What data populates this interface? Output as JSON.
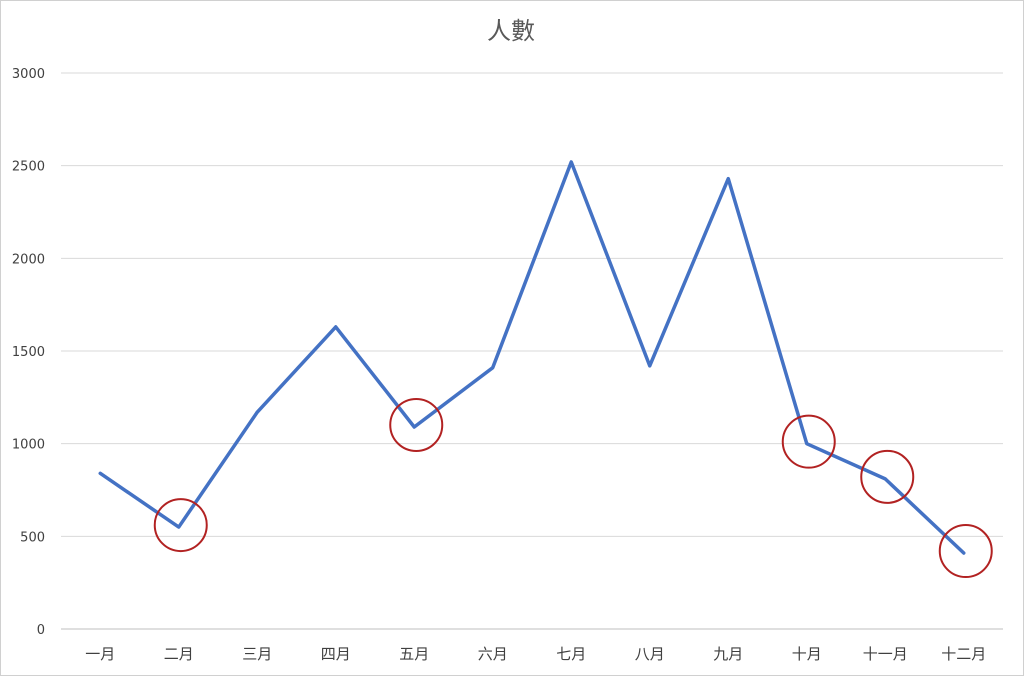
{
  "chart_data": {
    "type": "line",
    "title": "人數",
    "xlabel": "",
    "ylabel": "",
    "categories": [
      "一月",
      "二月",
      "三月",
      "四月",
      "五月",
      "六月",
      "七月",
      "八月",
      "九月",
      "十月",
      "十一月",
      "十二月"
    ],
    "series": [
      {
        "values": [
          840,
          550,
          1170,
          1630,
          1090,
          1410,
          2520,
          1420,
          2430,
          1000,
          810,
          410
        ],
        "color": "#4472c4"
      }
    ],
    "ylim": [
      0,
      3000
    ],
    "yticks": [
      "0",
      "500",
      "1000",
      "1500",
      "2000",
      "2500",
      "3000"
    ],
    "grid": true,
    "legend": "none",
    "annotations": {
      "type": "circle",
      "color": "#b22222",
      "categories": [
        "二月",
        "五月",
        "十月",
        "十一月",
        "十二月"
      ]
    }
  }
}
